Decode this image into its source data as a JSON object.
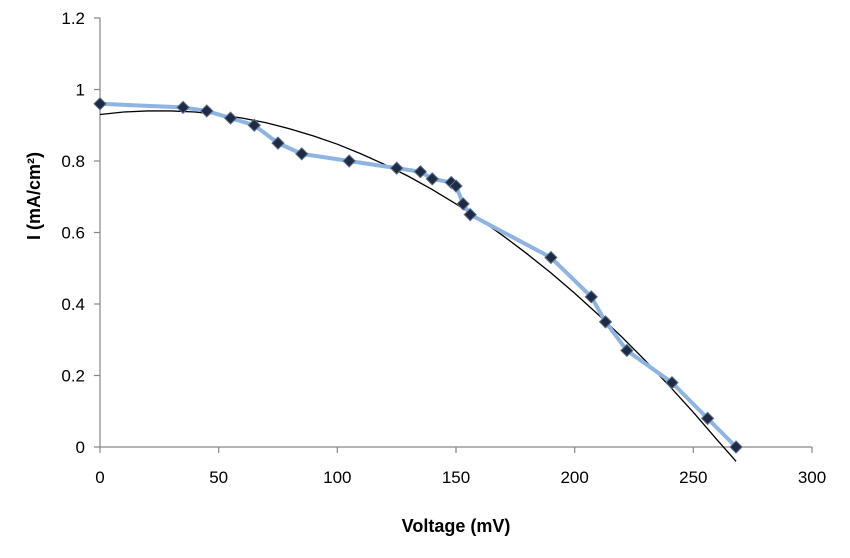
{
  "chart_data": {
    "type": "line",
    "title": "",
    "xlabel": "Voltage  (mV)",
    "ylabel": "I (mA/cm²)",
    "xlim": [
      0,
      300
    ],
    "ylim": [
      0,
      1.2
    ],
    "x_ticks": [
      0,
      50,
      100,
      150,
      200,
      250,
      300
    ],
    "y_ticks": [
      0,
      0.2,
      0.4,
      0.6,
      0.8,
      1,
      1.2
    ],
    "x_tick_labels": [
      "0",
      "50",
      "100",
      "150",
      "200",
      "250",
      "300"
    ],
    "y_tick_labels": [
      "0",
      "0.2",
      "0.4",
      "0.6",
      "0.8",
      "1",
      "1.2"
    ],
    "grid": false,
    "legend": "none",
    "series": [
      {
        "marker": "diamond",
        "line_color": "#8eb4e3",
        "marker_color": "#1f2a44",
        "x": [
          0,
          35,
          45,
          55,
          65,
          75,
          85,
          105,
          125,
          135,
          140,
          148,
          150,
          153,
          156,
          190,
          207,
          213,
          222,
          241,
          256,
          268
        ],
        "y": [
          0.96,
          0.95,
          0.94,
          0.92,
          0.9,
          0.85,
          0.82,
          0.8,
          0.78,
          0.77,
          0.75,
          0.74,
          0.73,
          0.68,
          0.65,
          0.53,
          0.42,
          0.35,
          0.27,
          0.18,
          0.08,
          0.0
        ]
      }
    ],
    "trendline": {
      "type": "polynomial",
      "color": "#000000",
      "x": [
        0,
        10,
        20,
        30,
        40,
        50,
        60,
        70,
        80,
        90,
        100,
        110,
        120,
        130,
        140,
        150,
        160,
        170,
        180,
        190,
        200,
        210,
        220,
        230,
        240,
        250,
        260,
        268
      ],
      "y": [
        0.93,
        0.937,
        0.94,
        0.94,
        0.937,
        0.93,
        0.92,
        0.907,
        0.89,
        0.87,
        0.847,
        0.82,
        0.79,
        0.757,
        0.72,
        0.68,
        0.637,
        0.59,
        0.54,
        0.487,
        0.43,
        0.37,
        0.307,
        0.24,
        0.17,
        0.097,
        0.02,
        -0.04
      ]
    }
  }
}
